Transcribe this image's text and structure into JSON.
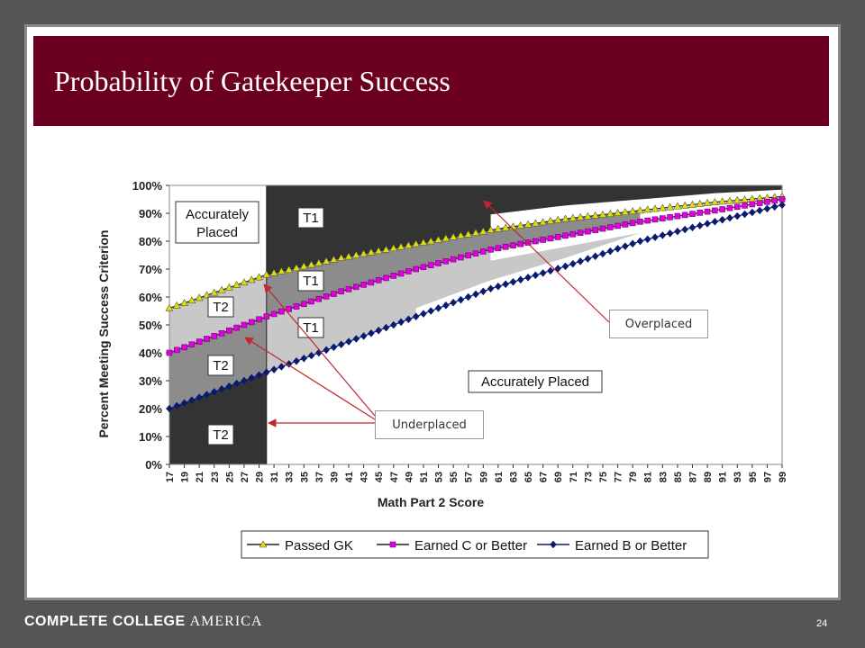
{
  "slide": {
    "title": "Probability of Gatekeeper Success",
    "page_number": "24",
    "footer_logo": {
      "bold_part": "COMPLETE COLLEGE",
      "light_part": "AMERICA"
    }
  },
  "callouts": {
    "overplaced": "Overplaced",
    "underplaced": "Underplaced"
  },
  "region_labels": {
    "accurately_placed_top_line1": "Accurately",
    "accurately_placed_top_line2": "Placed",
    "accurately_placed_bottom": "Accurately Placed",
    "t1": "T1",
    "t2": "T2"
  },
  "colors": {
    "title_bar": "#6b0020",
    "frame": "#555555",
    "passed_gk": "#e0e000",
    "earned_c": "#e000e0",
    "earned_b": "#0a1a6e",
    "dark_region": "#333333",
    "mid_region": "#8c8c8c",
    "light_region": "#c8c8c8",
    "arrow": "#c0282e"
  },
  "chart_data": {
    "type": "line",
    "xlabel": "Math Part 2 Score",
    "ylabel": "Percent Meeting Success Criterion",
    "x_ticks": [
      "17",
      "19",
      "21",
      "23",
      "25",
      "27",
      "29",
      "31",
      "33",
      "35",
      "37",
      "39",
      "41",
      "43",
      "45",
      "47",
      "49",
      "51",
      "53",
      "55",
      "57",
      "59",
      "61",
      "63",
      "65",
      "67",
      "69",
      "71",
      "73",
      "75",
      "77",
      "79",
      "81",
      "83",
      "85",
      "87",
      "89",
      "91",
      "93",
      "95",
      "97",
      "99"
    ],
    "y_ticks": [
      "0%",
      "10%",
      "20%",
      "30%",
      "40%",
      "50%",
      "60%",
      "70%",
      "80%",
      "90%",
      "100%"
    ],
    "ylim": [
      0,
      100
    ],
    "xlim": [
      17,
      99
    ],
    "cut_score": 30,
    "series": [
      {
        "name": "Passed GK",
        "marker": "triangle",
        "x": [
          17,
          30,
          40,
          50,
          60,
          70,
          80,
          90,
          99
        ],
        "y": [
          56,
          68,
          74,
          79,
          84,
          88,
          91,
          94,
          96
        ]
      },
      {
        "name": "Earned C or Better",
        "marker": "square",
        "x": [
          17,
          30,
          40,
          50,
          60,
          70,
          80,
          90,
          99
        ],
        "y": [
          40,
          53,
          62,
          70,
          77,
          82,
          87,
          91,
          95
        ]
      },
      {
        "name": "Earned B or Better",
        "marker": "diamond",
        "x": [
          17,
          30,
          40,
          50,
          60,
          70,
          80,
          90,
          99
        ],
        "y": [
          20,
          33,
          43,
          53,
          63,
          71,
          80,
          87,
          93
        ]
      }
    ],
    "legend": [
      "Passed GK",
      "Earned C or Better",
      "Earned B or Better"
    ],
    "legend_position": "bottom"
  }
}
